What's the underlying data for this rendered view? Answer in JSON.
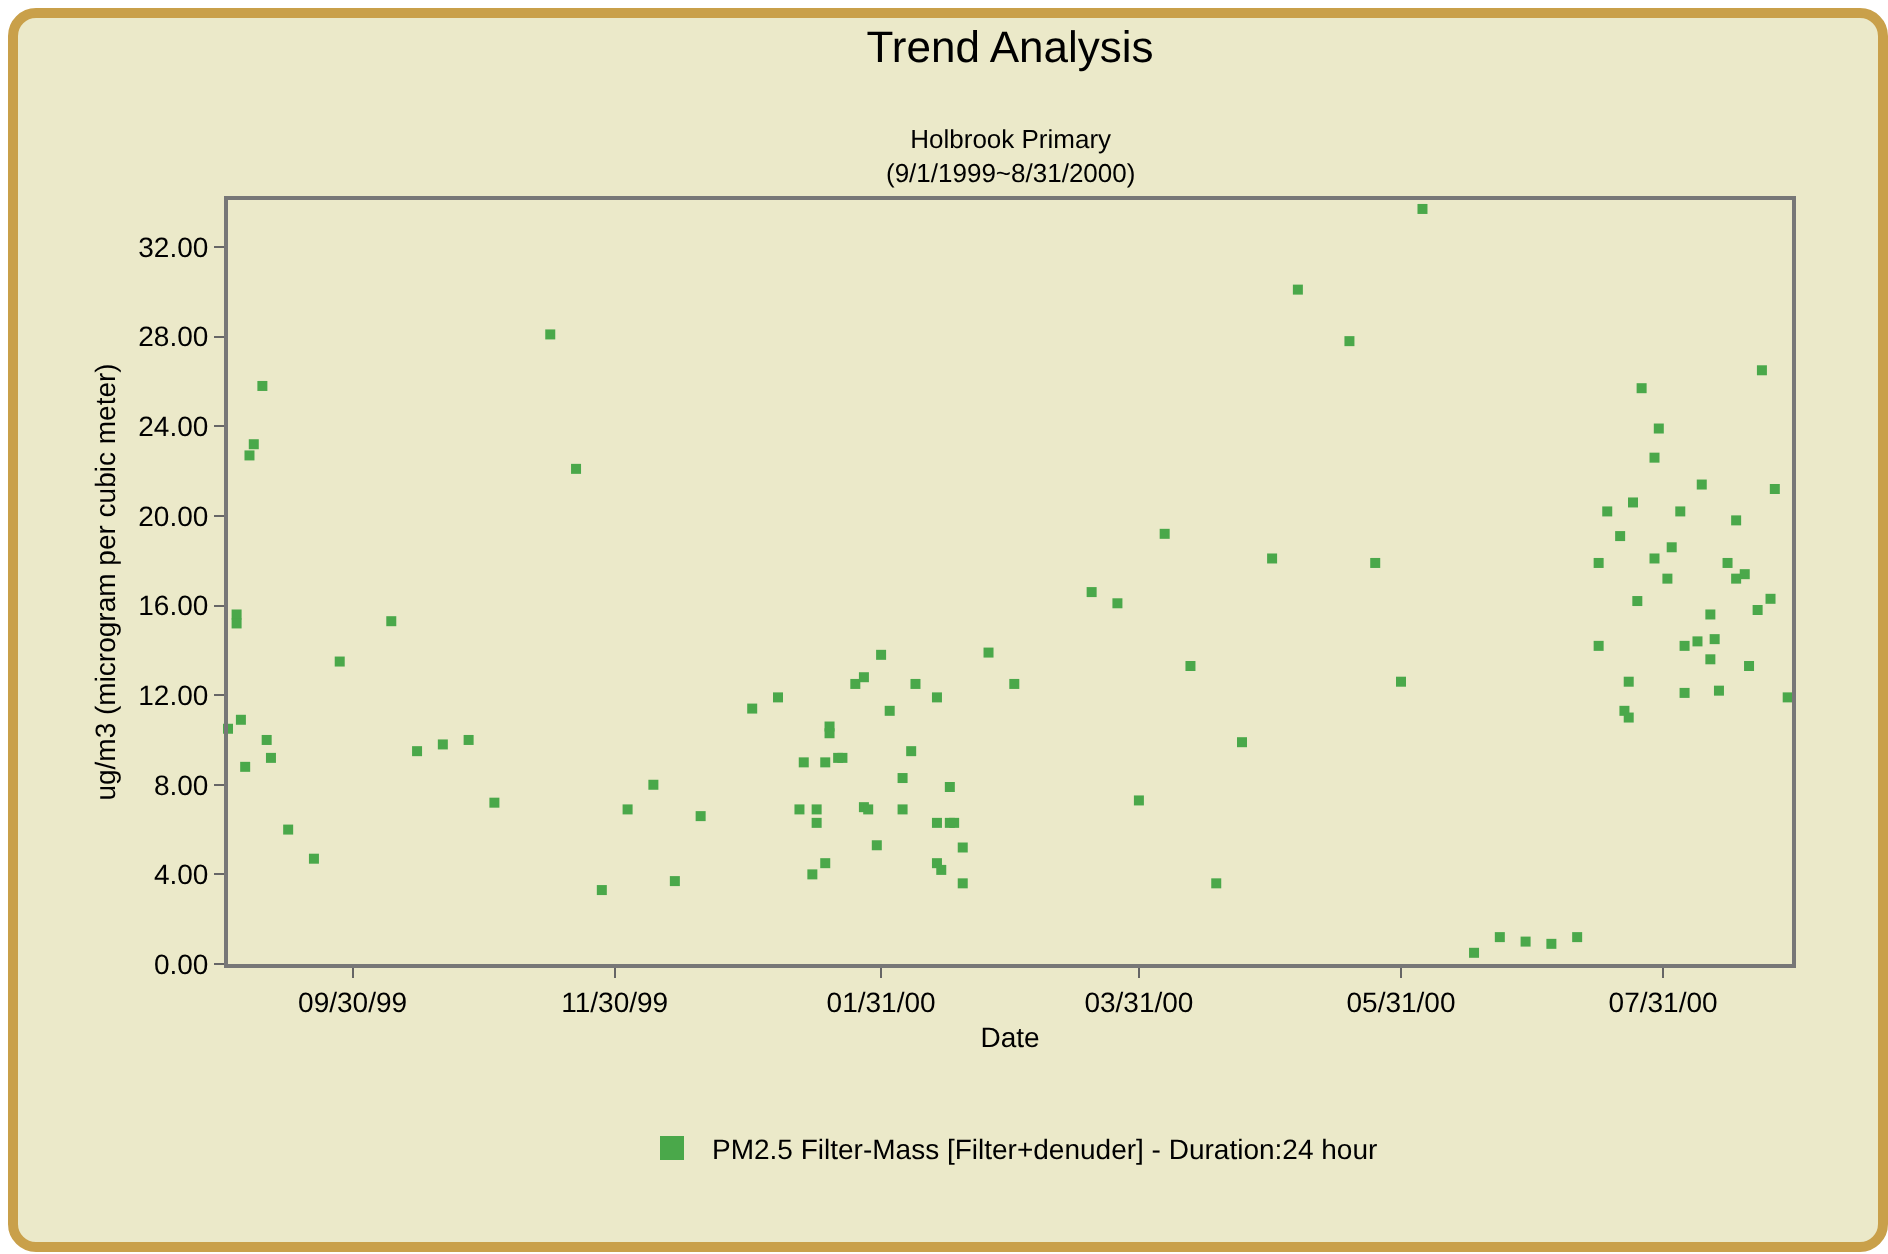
{
  "chart_data": {
    "type": "scatter",
    "title": "Trend Analysis",
    "subtitle": "Holbrook Primary",
    "annotations": [
      "(9/1/1999~8/31/2000)"
    ],
    "xlabel": "Date",
    "ylabel": "ug/m3 (microgram per cubic meter)",
    "xlim": [
      "1999-09-01",
      "2000-08-30"
    ],
    "ylim": [
      0,
      34.1
    ],
    "xticks": [
      {
        "value": "1999-09-30",
        "label": "09/30/99"
      },
      {
        "value": "1999-11-30",
        "label": "11/30/99"
      },
      {
        "value": "2000-01-31",
        "label": "01/31/00"
      },
      {
        "value": "2000-03-31",
        "label": "03/31/00"
      },
      {
        "value": "2000-05-31",
        "label": "05/31/00"
      },
      {
        "value": "2000-07-31",
        "label": "07/31/00"
      }
    ],
    "yticks": [
      {
        "value": 0,
        "label": "0.00"
      },
      {
        "value": 4,
        "label": "4.00"
      },
      {
        "value": 8,
        "label": "8.00"
      },
      {
        "value": 12,
        "label": "12.00"
      },
      {
        "value": 16,
        "label": "16.00"
      },
      {
        "value": 20,
        "label": "20.00"
      },
      {
        "value": 24,
        "label": "24.00"
      },
      {
        "value": 28,
        "label": "28.00"
      },
      {
        "value": 32,
        "label": "32.00"
      }
    ],
    "grid": false,
    "legend": "bottom",
    "marker": "square",
    "series": [
      {
        "name": "PM2.5 Filter-Mass [Filter+denuder] - Duration:24 hour",
        "color": "#4aa84a",
        "x": [
          "1999-09-01",
          "1999-09-03",
          "1999-09-03",
          "1999-09-04",
          "1999-09-05",
          "1999-09-06",
          "1999-09-07",
          "1999-09-09",
          "1999-09-10",
          "1999-09-11",
          "1999-09-15",
          "1999-09-21",
          "1999-09-27",
          "1999-10-09",
          "1999-10-15",
          "1999-10-21",
          "1999-10-27",
          "1999-11-02",
          "1999-11-15",
          "1999-11-21",
          "1999-11-27",
          "1999-12-03",
          "1999-12-09",
          "1999-12-14",
          "1999-12-20",
          "2000-01-01",
          "2000-01-07",
          "2000-01-12",
          "2000-01-13",
          "2000-01-15",
          "2000-01-16",
          "2000-01-16",
          "2000-01-18",
          "2000-01-18",
          "2000-01-19",
          "2000-01-19",
          "2000-01-21",
          "2000-01-22",
          "2000-01-25",
          "2000-01-27",
          "2000-01-27",
          "2000-01-28",
          "2000-01-30",
          "2000-01-31",
          "2000-02-02",
          "2000-02-05",
          "2000-02-05",
          "2000-02-07",
          "2000-02-08",
          "2000-02-13",
          "2000-02-13",
          "2000-02-13",
          "2000-02-14",
          "2000-02-16",
          "2000-02-16",
          "2000-02-17",
          "2000-02-19",
          "2000-02-19",
          "2000-02-25",
          "2000-03-02",
          "2000-03-20",
          "2000-03-26",
          "2000-03-31",
          "2000-04-06",
          "2000-04-12",
          "2000-04-18",
          "2000-04-24",
          "2000-05-01",
          "2000-05-07",
          "2000-05-19",
          "2000-05-25",
          "2000-05-31",
          "2000-06-05",
          "2000-06-17",
          "2000-06-23",
          "2000-06-29",
          "2000-07-05",
          "2000-07-11",
          "2000-07-16",
          "2000-07-16",
          "2000-07-18",
          "2000-07-21",
          "2000-07-22",
          "2000-07-23",
          "2000-07-23",
          "2000-07-24",
          "2000-07-25",
          "2000-07-26",
          "2000-07-29",
          "2000-07-30",
          "2000-07-29",
          "2000-08-01",
          "2000-08-02",
          "2000-08-04",
          "2000-08-05",
          "2000-08-05",
          "2000-08-08",
          "2000-08-09",
          "2000-08-11",
          "2000-08-11",
          "2000-08-12",
          "2000-08-13",
          "2000-08-15",
          "2000-08-17",
          "2000-08-17",
          "2000-08-19",
          "2000-08-20",
          "2000-08-22",
          "2000-08-23",
          "2000-08-25",
          "2000-08-26",
          "2000-08-29"
        ],
        "values": [
          10.5,
          15.6,
          15.2,
          10.9,
          8.8,
          22.7,
          23.2,
          25.8,
          10.0,
          9.2,
          6.0,
          4.7,
          13.5,
          15.3,
          9.5,
          9.8,
          10.0,
          7.2,
          28.1,
          22.1,
          3.3,
          6.9,
          8.0,
          3.7,
          6.6,
          11.4,
          11.9,
          6.9,
          9.0,
          4.0,
          6.3,
          6.9,
          4.5,
          9.0,
          10.6,
          10.3,
          9.2,
          9.2,
          12.5,
          12.8,
          7.0,
          6.9,
          5.3,
          13.8,
          11.3,
          8.3,
          6.9,
          9.5,
          12.5,
          6.3,
          4.5,
          11.9,
          4.2,
          6.3,
          7.9,
          6.3,
          5.2,
          3.6,
          13.9,
          12.5,
          16.6,
          16.1,
          7.3,
          19.2,
          13.3,
          3.6,
          9.9,
          18.1,
          30.1,
          27.8,
          17.9,
          12.6,
          33.7,
          0.5,
          1.2,
          1.0,
          0.9,
          1.2,
          17.9,
          14.2,
          20.2,
          19.1,
          11.3,
          11.0,
          12.6,
          20.6,
          16.2,
          25.7,
          22.6,
          23.9,
          18.1,
          17.2,
          18.6,
          20.2,
          14.2,
          12.1,
          14.4,
          21.4,
          15.6,
          13.6,
          14.5,
          12.2,
          17.9,
          19.8,
          17.2,
          17.4,
          13.3,
          15.8,
          26.5,
          16.3,
          21.2,
          11.9
        ]
      }
    ]
  }
}
